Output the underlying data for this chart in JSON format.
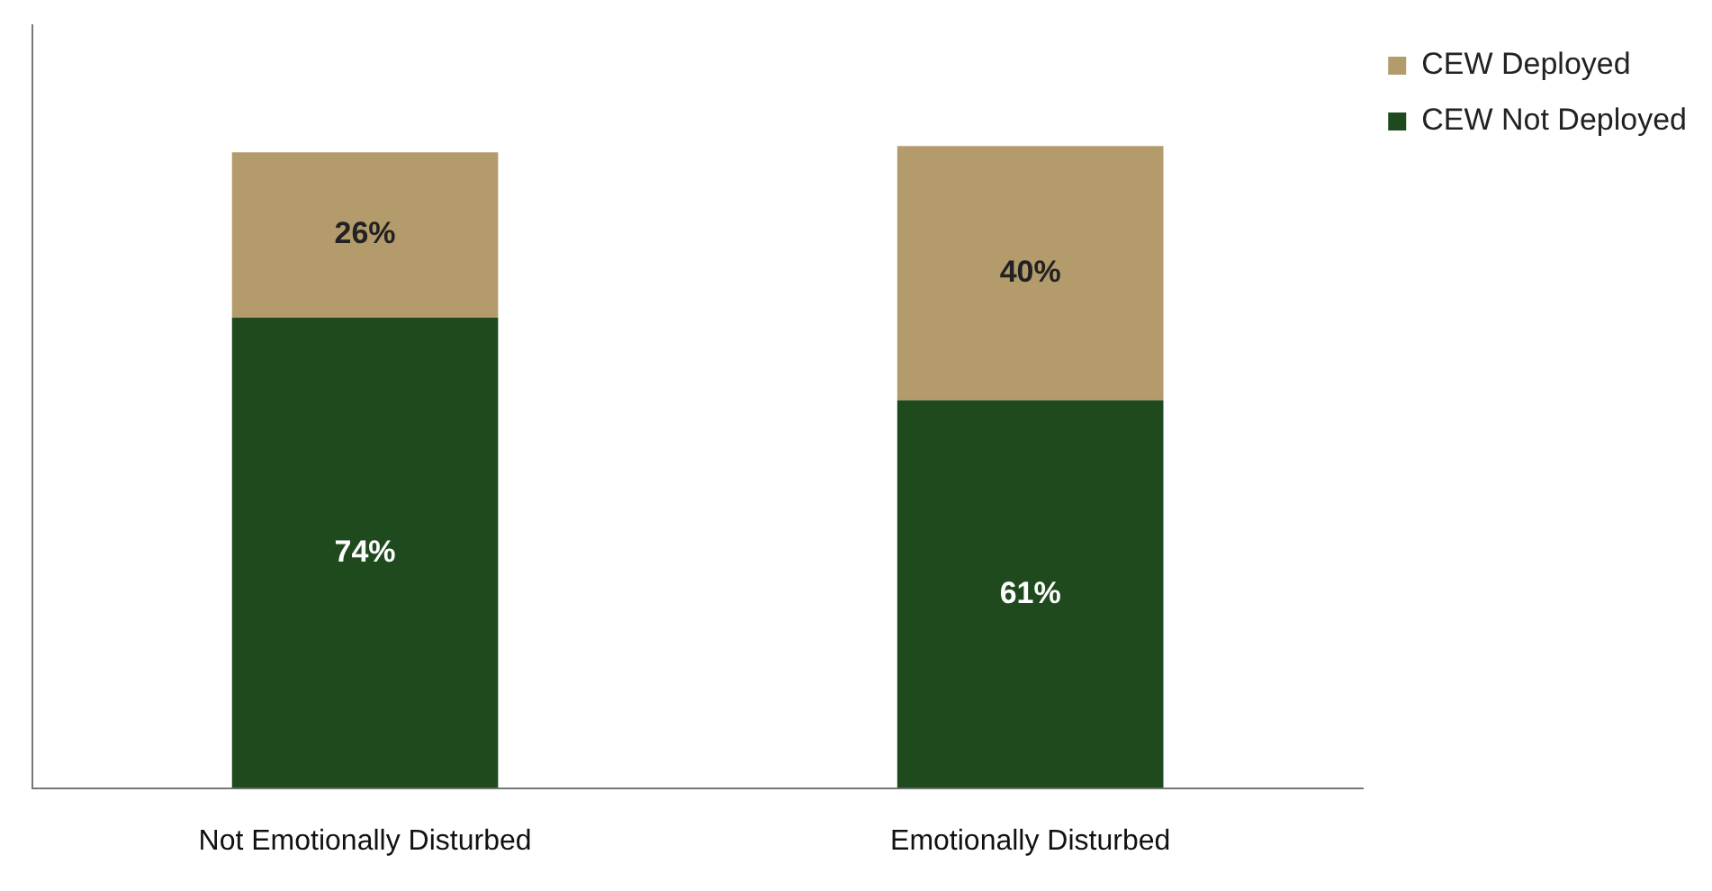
{
  "chart_data": {
    "type": "bar",
    "stacked": true,
    "categories": [
      "Not Emotionally Disturbed",
      "Emotionally Disturbed"
    ],
    "series": [
      {
        "name": "CEW Not Deployed",
        "color": "#1e4a1e",
        "values": [
          74,
          61
        ],
        "value_labels": [
          "74%",
          "61%"
        ]
      },
      {
        "name": "CEW Deployed",
        "color": "#b39b6b",
        "values": [
          26,
          40
        ],
        "value_labels": [
          "26%",
          "40%"
        ]
      }
    ],
    "relative": false,
    "grid": false,
    "legend": "top right",
    "tick_labels": "x"
  }
}
